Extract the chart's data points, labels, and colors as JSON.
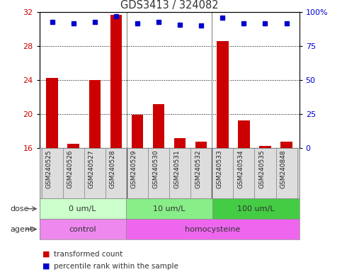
{
  "title": "GDS3413 / 324082",
  "samples": [
    "GSM240525",
    "GSM240526",
    "GSM240527",
    "GSM240528",
    "GSM240529",
    "GSM240530",
    "GSM240531",
    "GSM240532",
    "GSM240533",
    "GSM240534",
    "GSM240535",
    "GSM240848"
  ],
  "transformed_count": [
    24.3,
    16.5,
    24.0,
    31.7,
    19.9,
    21.2,
    17.2,
    16.8,
    28.6,
    19.3,
    16.3,
    16.8
  ],
  "percentile_rank": [
    93,
    92,
    93,
    97,
    92,
    93,
    91,
    90,
    96,
    92,
    92,
    92
  ],
  "ylim_left": [
    16,
    32
  ],
  "ylim_right": [
    0,
    100
  ],
  "yticks_left": [
    16,
    20,
    24,
    28,
    32
  ],
  "yticks_right": [
    0,
    25,
    50,
    75,
    100
  ],
  "ytick_labels_right": [
    "0",
    "25",
    "50",
    "75",
    "100%"
  ],
  "bar_color": "#cc0000",
  "dot_color": "#0000cc",
  "dose_groups": [
    {
      "label": "0 um/L",
      "start": 0,
      "end": 4,
      "color": "#ccffcc"
    },
    {
      "label": "10 um/L",
      "start": 4,
      "end": 8,
      "color": "#88ee88"
    },
    {
      "label": "100 um/L",
      "start": 8,
      "end": 12,
      "color": "#44cc44"
    }
  ],
  "agent_groups": [
    {
      "label": "control",
      "start": 0,
      "end": 4,
      "color": "#ee88ee"
    },
    {
      "label": "homocysteine",
      "start": 4,
      "end": 12,
      "color": "#ee66ee"
    }
  ],
  "group_dividers": [
    4,
    8
  ],
  "dose_label": "dose",
  "agent_label": "agent",
  "legend_items": [
    {
      "label": "transformed count",
      "color": "#cc0000"
    },
    {
      "label": "percentile rank within the sample",
      "color": "#0000cc"
    }
  ],
  "grid_color": "#000000",
  "grid_ticks": [
    20,
    24,
    28
  ],
  "background_color": "#ffffff",
  "sample_bg_color": "#cccccc",
  "tick_label_color_left": "#cc0000",
  "tick_label_color_right": "#0000cc"
}
